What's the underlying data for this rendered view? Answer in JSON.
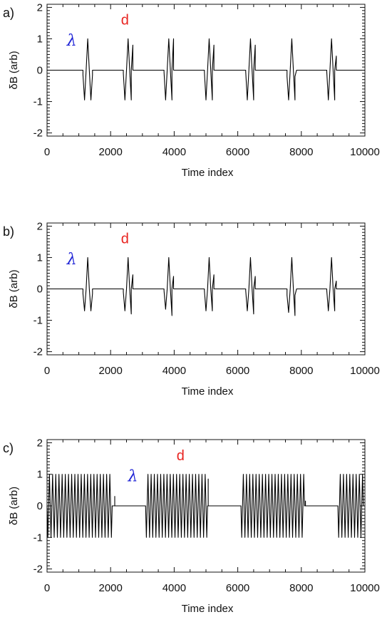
{
  "colors": {
    "d_marker": "#e8231f",
    "lambda_marker": "#1f24d6",
    "trace": "#000000"
  },
  "chart_data": [
    {
      "type": "line",
      "panel_label": "a)",
      "xlabel": "Time index",
      "ylabel": "δB (arb)",
      "xlim": [
        0,
        10000
      ],
      "ylim": [
        -2.1,
        2.1
      ],
      "x_ticks": [
        0,
        2000,
        4000,
        6000,
        8000,
        10000
      ],
      "y_ticks": [
        -2,
        -1,
        0,
        1,
        2
      ],
      "grid": false,
      "annotations": [
        {
          "text": "d",
          "color": "#e8231f",
          "x": 2450,
          "y": 1.45
        },
        {
          "text": "λ",
          "color": "#1f24d6",
          "x": 780,
          "y": 0.78
        }
      ],
      "series": [
        {
          "x": [
            0,
            1130,
            1130,
            1180,
            1230,
            1280,
            1330,
            1380,
            1430,
            1430,
            2400,
            2400,
            2450,
            2500,
            2550,
            2600,
            2650,
            2650,
            2700,
            2700,
            3680,
            3680,
            3730,
            3780,
            3830,
            3880,
            3930,
            3930,
            3980,
            3980,
            4950,
            4950,
            5000,
            5050,
            5100,
            5150,
            5200,
            5200,
            5250,
            5250,
            6250,
            6250,
            6300,
            6350,
            6400,
            6450,
            6500,
            6500,
            6550,
            6550,
            7550,
            7550,
            7600,
            7650,
            7700,
            7750,
            7800,
            7800,
            7850,
            7850,
            8800,
            8800,
            8850,
            8900,
            8950,
            9000,
            9050,
            9050,
            9100,
            9100,
            10000
          ],
          "y": [
            0,
            0,
            -0.15,
            -0.95,
            0,
            1.0,
            0,
            -0.95,
            -0.15,
            0,
            0,
            -0.1,
            -0.95,
            0,
            1.0,
            0,
            -0.95,
            0,
            0.8,
            0,
            0,
            -0.05,
            -0.95,
            0,
            1.0,
            0,
            -0.95,
            0,
            1.0,
            0,
            0,
            -0.05,
            -0.95,
            0,
            1.0,
            0,
            -0.95,
            0,
            0.8,
            0,
            0,
            -0.05,
            -0.95,
            0,
            1.0,
            0,
            -0.95,
            0,
            0.8,
            0,
            0,
            -0.2,
            -0.95,
            0,
            1.0,
            0,
            -0.95,
            -0.2,
            0,
            0,
            0,
            -0.05,
            -0.95,
            0,
            1.0,
            0,
            -0.95,
            0,
            0.45,
            0,
            0
          ]
        }
      ]
    },
    {
      "type": "line",
      "panel_label": "b)",
      "xlabel": "Time index",
      "ylabel": "δB (arb)",
      "xlim": [
        0,
        10000
      ],
      "ylim": [
        -2.1,
        2.1
      ],
      "x_ticks": [
        0,
        2000,
        4000,
        6000,
        8000,
        10000
      ],
      "y_ticks": [
        -2,
        -1,
        0,
        1,
        2
      ],
      "grid": false,
      "annotations": [
        {
          "text": "d",
          "color": "#e8231f",
          "x": 2450,
          "y": 1.45
        },
        {
          "text": "λ",
          "color": "#1f24d6",
          "x": 780,
          "y": 0.78
        }
      ],
      "series": [
        {
          "x": [
            0,
            1130,
            1130,
            1180,
            1230,
            1280,
            1330,
            1380,
            1430,
            1430,
            2400,
            2400,
            2450,
            2500,
            2550,
            2600,
            2650,
            2650,
            2700,
            2700,
            3680,
            3680,
            3730,
            3780,
            3830,
            3880,
            3930,
            3930,
            3980,
            3980,
            4950,
            4950,
            5000,
            5050,
            5100,
            5150,
            5200,
            5200,
            5250,
            5250,
            6250,
            6250,
            6300,
            6350,
            6400,
            6450,
            6500,
            6500,
            6550,
            6550,
            7550,
            7550,
            7600,
            7650,
            7700,
            7750,
            7800,
            7800,
            7850,
            7850,
            8800,
            8800,
            8850,
            8900,
            8950,
            9000,
            9050,
            9050,
            9100,
            9100,
            10000
          ],
          "y": [
            0,
            0,
            -0.15,
            -0.7,
            0,
            1.0,
            0,
            -0.7,
            -0.15,
            0,
            0,
            -0.1,
            -0.7,
            0,
            1.0,
            0,
            -0.8,
            0,
            0.45,
            0,
            0,
            -0.05,
            -0.65,
            0,
            1.0,
            0,
            -0.85,
            0,
            0.4,
            0,
            0,
            -0.05,
            -0.7,
            0,
            1.0,
            0,
            -0.7,
            0,
            0.45,
            0,
            0,
            -0.05,
            -0.7,
            0,
            1.0,
            0,
            -0.8,
            0,
            0.4,
            0,
            0,
            -0.2,
            -0.75,
            0,
            1.0,
            0,
            -0.85,
            -0.2,
            0,
            0,
            0,
            -0.05,
            -0.7,
            0,
            1.0,
            0,
            -0.7,
            0,
            0.25,
            0,
            0
          ]
        }
      ]
    },
    {
      "type": "line",
      "panel_label": "c)",
      "xlabel": "Time index",
      "ylabel": "δB (arb)",
      "xlim": [
        0,
        10000
      ],
      "ylim": [
        -2.1,
        2.1
      ],
      "x_ticks": [
        0,
        2000,
        4000,
        6000,
        8000,
        10000
      ],
      "y_ticks": [
        -2,
        -1,
        0,
        1,
        2
      ],
      "grid": false,
      "annotations": [
        {
          "text": "d",
          "color": "#e8231f",
          "x": 4200,
          "y": 1.45
        },
        {
          "text": "λ",
          "color": "#1f24d6",
          "x": 2700,
          "y": 0.78
        }
      ],
      "series": [
        {
          "segments": [
            {
              "x_start": 0,
              "x_end": 2050,
              "period": 100,
              "amplitude": 1
            },
            {
              "x_start": 3100,
              "x_end": 5050,
              "period": 100,
              "amplitude": 1
            },
            {
              "x_start": 6100,
              "x_end": 8100,
              "period": 100,
              "amplitude": 1
            },
            {
              "x_start": 9150,
              "x_end": 9950,
              "period": 100,
              "amplitude": 1
            }
          ],
          "between_segments_value": 0,
          "segment_end_spikes": [
            {
              "x": 2130,
              "y": 0.3
            },
            {
              "x": 5070,
              "y": 0.85
            },
            {
              "x": 8130,
              "y": 0.15
            }
          ]
        }
      ]
    }
  ]
}
